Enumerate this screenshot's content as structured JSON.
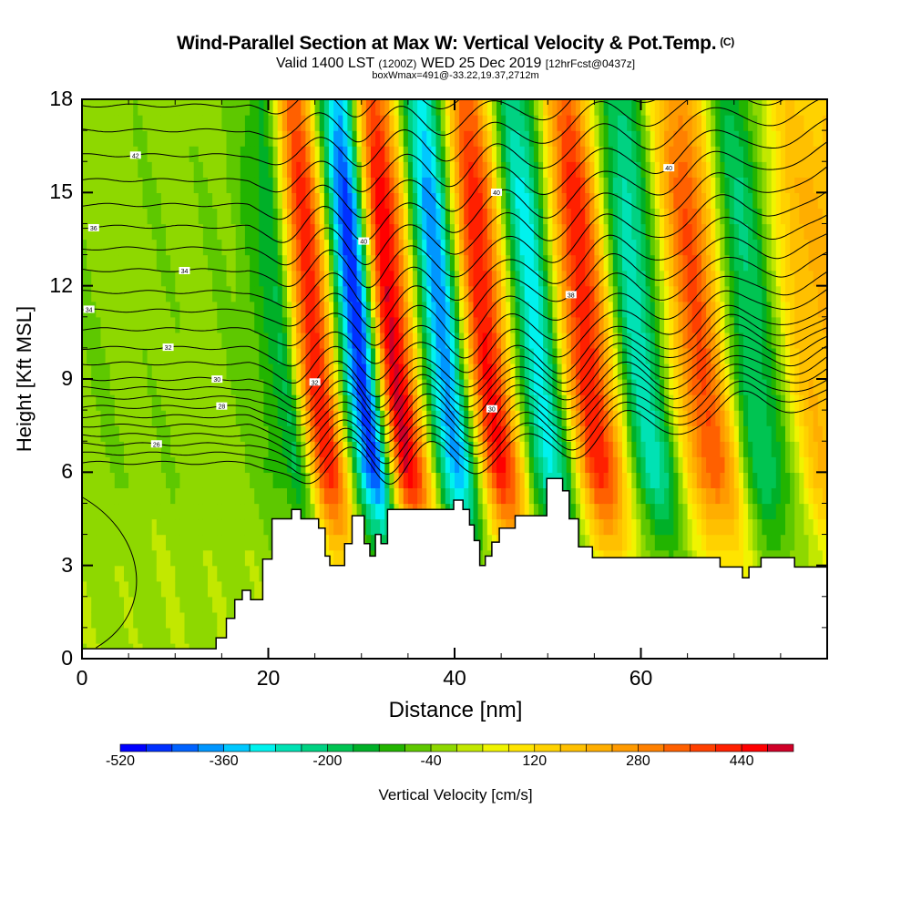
{
  "header": {
    "title": "Wind-Parallel Section at Max W: Vertical Velocity & Pot.Temp.",
    "copyright": "(C)",
    "valid_prefix": "Valid 1400 LST",
    "valid_utc": "(1200Z)",
    "valid_date": "WED 25 Dec 2019",
    "forecast": "[12hrFcst@0437z]",
    "box_wmax": "boxWmax=491@-33.22,19.37,2712m"
  },
  "chart_data": {
    "type": "heatmap",
    "title": "Wind-Parallel Section at Max W: Vertical Velocity & Pot.Temp.",
    "xlabel": "Distance [nm]",
    "ylabel": "Height [Kft MSL]",
    "xlim": [
      0,
      80
    ],
    "ylim": [
      0,
      18
    ],
    "x_ticks": [
      "0",
      "20",
      "40",
      "60"
    ],
    "x_tick_values": [
      0,
      20,
      40,
      60
    ],
    "y_ticks": [
      "0",
      "3",
      "6",
      "9",
      "12",
      "15",
      "18"
    ],
    "y_tick_values": [
      0,
      3,
      6,
      9,
      12,
      15,
      18
    ],
    "colorbar": {
      "label": "Vertical Velocity [cm/s]",
      "min": -520,
      "max": 520,
      "step": 40,
      "tick_labels": [
        "-520",
        "-360",
        "-200",
        "-40",
        "120",
        "280",
        "440"
      ],
      "tick_values": [
        -520,
        -360,
        -200,
        -40,
        120,
        280,
        440
      ],
      "colors": [
        "#0000ff",
        "#0030ff",
        "#0062ff",
        "#0096ff",
        "#00c8ff",
        "#00f2ee",
        "#00e2b4",
        "#00d282",
        "#00c452",
        "#00b028",
        "#22b400",
        "#5ec800",
        "#8ed800",
        "#c2e800",
        "#f0f400",
        "#ffe400",
        "#ffd200",
        "#ffc000",
        "#ffae00",
        "#ff9a00",
        "#ff8000",
        "#ff6000",
        "#ff4000",
        "#ff2000",
        "#ff0000",
        "#d00028"
      ]
    },
    "wave_axes_at_9kft_nm": [
      {
        "kind": "downdraft",
        "x": 21.5,
        "w": -160
      },
      {
        "kind": "updraft",
        "x": 25.2,
        "w": 430
      },
      {
        "kind": "downdraft",
        "x": 30.0,
        "w": -460
      },
      {
        "kind": "updraft",
        "x": 33.6,
        "w": 480
      },
      {
        "kind": "downdraft",
        "x": 39.0,
        "w": -380
      },
      {
        "kind": "updraft",
        "x": 43.6,
        "w": 440
      },
      {
        "kind": "downdraft",
        "x": 49.0,
        "w": -300
      },
      {
        "kind": "updraft",
        "x": 54.4,
        "w": 430
      },
      {
        "kind": "downdraft",
        "x": 60.0,
        "w": -260
      },
      {
        "kind": "updraft",
        "x": 66.5,
        "w": 360
      },
      {
        "kind": "downdraft",
        "x": 72.0,
        "w": -200
      },
      {
        "kind": "updraft",
        "x": 78.5,
        "w": 200
      }
    ],
    "max_w": 491,
    "terrain_kft": [
      [
        0,
        0.32
      ],
      [
        14.4,
        0.32
      ],
      [
        14.4,
        0.67
      ],
      [
        15.5,
        0.67
      ],
      [
        15.5,
        1.3
      ],
      [
        16.4,
        1.3
      ],
      [
        16.4,
        1.9
      ],
      [
        17.2,
        1.9
      ],
      [
        17.2,
        2.2
      ],
      [
        18.1,
        2.2
      ],
      [
        18.1,
        1.9
      ],
      [
        19.4,
        1.9
      ],
      [
        19.4,
        3.2
      ],
      [
        20.4,
        3.2
      ],
      [
        20.4,
        4.5
      ],
      [
        22.5,
        4.5
      ],
      [
        22.5,
        4.8
      ],
      [
        23.5,
        4.8
      ],
      [
        23.5,
        4.5
      ],
      [
        25.4,
        4.5
      ],
      [
        25.4,
        4.2
      ],
      [
        26.1,
        4.2
      ],
      [
        26.1,
        3.3
      ],
      [
        26.6,
        3.3
      ],
      [
        26.6,
        3.0
      ],
      [
        28.2,
        3.0
      ],
      [
        28.2,
        3.7
      ],
      [
        29.0,
        3.7
      ],
      [
        29.0,
        4.6
      ],
      [
        30.3,
        4.6
      ],
      [
        30.3,
        3.7
      ],
      [
        30.9,
        3.7
      ],
      [
        30.9,
        3.3
      ],
      [
        31.5,
        3.3
      ],
      [
        31.5,
        4.0
      ],
      [
        32.1,
        4.0
      ],
      [
        32.1,
        3.7
      ],
      [
        32.8,
        3.7
      ],
      [
        32.8,
        4.8
      ],
      [
        39.9,
        4.8
      ],
      [
        39.9,
        5.1
      ],
      [
        40.9,
        5.1
      ],
      [
        40.9,
        4.8
      ],
      [
        41.6,
        4.8
      ],
      [
        41.6,
        4.3
      ],
      [
        42.1,
        4.3
      ],
      [
        42.1,
        3.8
      ],
      [
        42.7,
        3.8
      ],
      [
        42.7,
        3.0
      ],
      [
        43.3,
        3.0
      ],
      [
        43.3,
        3.3
      ],
      [
        44.0,
        3.3
      ],
      [
        44.0,
        3.75
      ],
      [
        44.8,
        3.75
      ],
      [
        44.8,
        4.2
      ],
      [
        46.5,
        4.2
      ],
      [
        46.5,
        4.6
      ],
      [
        49.9,
        4.6
      ],
      [
        49.9,
        5.8
      ],
      [
        51.6,
        5.8
      ],
      [
        51.6,
        5.4
      ],
      [
        52.3,
        5.4
      ],
      [
        52.3,
        4.5
      ],
      [
        53.3,
        4.5
      ],
      [
        53.3,
        3.6
      ],
      [
        54.8,
        3.6
      ],
      [
        54.8,
        3.25
      ],
      [
        68.5,
        3.25
      ],
      [
        68.5,
        2.95
      ],
      [
        70.9,
        2.95
      ],
      [
        70.9,
        2.6
      ],
      [
        71.6,
        2.6
      ],
      [
        71.6,
        2.95
      ],
      [
        72.9,
        2.95
      ],
      [
        72.9,
        3.25
      ],
      [
        76.5,
        3.25
      ],
      [
        76.5,
        2.95
      ],
      [
        80,
        2.95
      ]
    ],
    "theta_contour_base_heights_kft": [
      6.3,
      6.6,
      6.9,
      7.2,
      7.5,
      7.8,
      8.1,
      8.4,
      8.7,
      9.0,
      9.5,
      10.0,
      10.6,
      11.2,
      11.8,
      12.5,
      13.2,
      13.9,
      14.6,
      15.4,
      16.2,
      17.0,
      17.8
    ],
    "contour_labels": [
      {
        "text": "42",
        "line": 20,
        "x": 5.7
      },
      {
        "text": "36",
        "line": 17,
        "x": 1.3
      },
      {
        "text": "34",
        "line": 15,
        "x": 10.9
      },
      {
        "text": "34",
        "line": 13,
        "x": 0.7
      },
      {
        "text": "32",
        "line": 11,
        "x": 9.2
      },
      {
        "text": "30",
        "line": 9,
        "x": 14.5
      },
      {
        "text": "28",
        "line": 6,
        "x": 15.0
      },
      {
        "text": "26",
        "line": 2,
        "x": 7.9
      },
      {
        "text": "40",
        "line": 17,
        "x": 30.2
      },
      {
        "text": "40",
        "line": 17,
        "x": 44.6
      },
      {
        "text": "40",
        "line": 18,
        "x": 63.1
      },
      {
        "text": "38",
        "line": 13,
        "x": 52.4
      },
      {
        "text": "32",
        "line": 9,
        "x": 24.9
      },
      {
        "text": "30",
        "line": 5,
        "x": 44.0
      }
    ]
  }
}
